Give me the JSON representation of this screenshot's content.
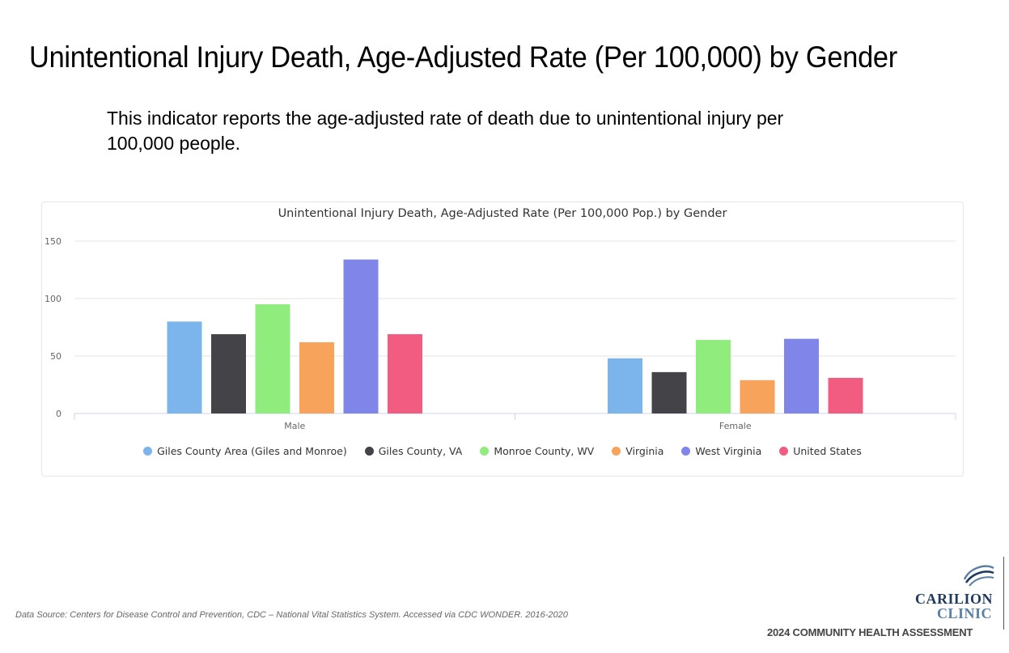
{
  "page": {
    "title": "Unintentional Injury Death, Age-Adjusted Rate (Per 100,000) by Gender",
    "description": "This indicator reports the age-adjusted rate of death due to unintentional injury per 100,000 people.",
    "source": "Data Source: Centers for Disease Control and Prevention, CDC – National Vital Statistics System. Accessed via CDC WONDER. 2016-2020",
    "logo": {
      "line1": "CARILION",
      "line2": "CLINIC",
      "tagline": "2024 COMMUNITY HEALTH ASSESSMENT"
    }
  },
  "chart_data": {
    "type": "bar",
    "title": "Unintentional Injury Death, Age-Adjusted Rate (Per 100,000 Pop.) by Gender",
    "xlabel": "",
    "ylabel": "",
    "categories": [
      "Male",
      "Female"
    ],
    "ylim": [
      0,
      150
    ],
    "yticks": [
      0,
      50,
      100,
      150
    ],
    "grid": true,
    "legend_position": "bottom",
    "series": [
      {
        "name": "Giles County Area (Giles and Monroe)",
        "color": "#7cb5ec",
        "values": [
          80,
          48
        ]
      },
      {
        "name": "Giles County, VA",
        "color": "#434348",
        "values": [
          69,
          36
        ]
      },
      {
        "name": "Monroe County, WV",
        "color": "#90ed7d",
        "values": [
          95,
          64
        ]
      },
      {
        "name": "Virginia",
        "color": "#f7a35c",
        "values": [
          62,
          29
        ]
      },
      {
        "name": "West Virginia",
        "color": "#8085e9",
        "values": [
          134,
          65
        ]
      },
      {
        "name": "United States",
        "color": "#f15c80",
        "values": [
          69,
          31
        ]
      }
    ]
  }
}
